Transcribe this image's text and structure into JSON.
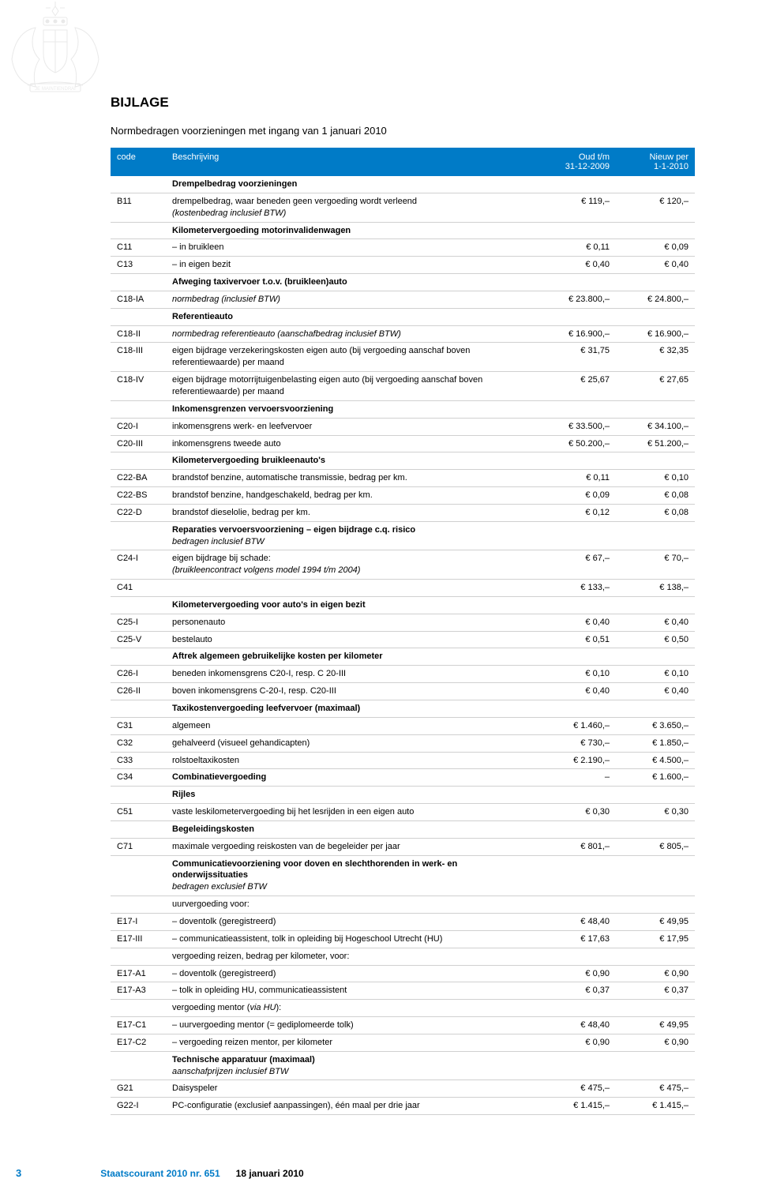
{
  "header": {
    "title": "BIJLAGE",
    "subtitle": "Normbedragen voorzieningen met ingang van 1 januari 2010"
  },
  "columns": {
    "code": "code",
    "desc": "Beschrijving",
    "old_line1": "Oud t/m",
    "old_line2": "31-12-2009",
    "new_line1": "Nieuw per",
    "new_line2": "1-1-2010"
  },
  "rows": [
    {
      "type": "section",
      "desc": "Drempelbedrag voorzieningen"
    },
    {
      "code": "B11",
      "desc": "drempelbedrag, waar beneden geen vergoeding wordt verleend",
      "desc2": "(kostenbedrag inclusief BTW)",
      "old": "€ 119,–",
      "new": "€ 120,–",
      "italic2": true
    },
    {
      "type": "section",
      "desc": "Kilometervergoeding motorinvalidenwagen"
    },
    {
      "code": "C11",
      "desc": "– in bruikleen",
      "old": "€ 0,11",
      "new": "€ 0,09"
    },
    {
      "code": "C13",
      "desc": "– in eigen bezit",
      "old": "€ 0,40",
      "new": "€ 0,40"
    },
    {
      "type": "section",
      "desc": "Afweging taxivervoer t.o.v. (bruikleen)auto"
    },
    {
      "code": "C18-IA",
      "desc": "normbedrag (inclusief BTW)",
      "italic": true,
      "old": "€ 23.800,–",
      "new": "€ 24.800,–"
    },
    {
      "type": "section",
      "desc": "Referentieauto"
    },
    {
      "code": "C18-II",
      "desc": "normbedrag referentieauto (aanschafbedrag inclusief BTW)",
      "italic": true,
      "old": "€ 16.900,–",
      "new": "€ 16.900,–"
    },
    {
      "code": "C18-III",
      "desc": "eigen bijdrage verzekeringskosten eigen auto (bij vergoeding aanschaf boven referentiewaarde) per maand",
      "old": "€ 31,75",
      "new": "€ 32,35"
    },
    {
      "code": "C18-IV",
      "desc": "eigen bijdrage motorrijtuigenbelasting eigen auto (bij vergoeding aanschaf boven referentiewaarde) per maand",
      "old": "€ 25,67",
      "new": "€ 27,65"
    },
    {
      "type": "section",
      "desc": "Inkomensgrenzen vervoersvoorziening"
    },
    {
      "code": "C20-I",
      "desc": "inkomensgrens werk- en leefvervoer",
      "old": "€ 33.500,–",
      "new": "€ 34.100,–"
    },
    {
      "code": "C20-III",
      "desc": "inkomensgrens tweede auto",
      "old": "€ 50.200,–",
      "new": "€ 51.200,–"
    },
    {
      "type": "section",
      "desc": "Kilometervergoeding bruikleenauto's"
    },
    {
      "code": "C22-BA",
      "desc": "brandstof benzine, automatische transmissie, bedrag per km.",
      "old": "€ 0,11",
      "new": "€ 0,10"
    },
    {
      "code": "C22-BS",
      "desc": "brandstof benzine, handgeschakeld, bedrag per km.",
      "old": "€ 0,09",
      "new": "€ 0,08"
    },
    {
      "code": "C22-D",
      "desc": "brandstof dieselolie, bedrag per km.",
      "old": "€ 0,12",
      "new": "€ 0,08"
    },
    {
      "type": "section",
      "desc": "Reparaties vervoersvoorziening – eigen bijdrage c.q. risico",
      "desc2": "bedragen inclusief BTW",
      "italic2": true
    },
    {
      "code": "C24-I",
      "desc": "eigen bijdrage bij schade:",
      "desc2": "(bruikleencontract volgens model 1994 t/m 2004)",
      "italic2": true,
      "old": "€ 67,–",
      "new": "€ 70,–"
    },
    {
      "code": "C41",
      "desc": "",
      "old": "€ 133,–",
      "new": "€ 138,–"
    },
    {
      "type": "section",
      "desc": "Kilometervergoeding voor auto's in eigen bezit"
    },
    {
      "code": "C25-I",
      "desc": "personenauto",
      "old": "€ 0,40",
      "new": "€ 0,40"
    },
    {
      "code": "C25-V",
      "desc": "bestelauto",
      "old": "€ 0,51",
      "new": "€ 0,50"
    },
    {
      "type": "section",
      "desc": "Aftrek algemeen gebruikelijke kosten per kilometer"
    },
    {
      "code": "C26-I",
      "desc": "beneden inkomensgrens C20-I, resp. C 20-III",
      "old": "€ 0,10",
      "new": "€ 0,10"
    },
    {
      "code": "C26-II",
      "desc": "boven inkomensgrens C-20-I, resp. C20-III",
      "old": "€ 0,40",
      "new": "€ 0,40"
    },
    {
      "type": "section",
      "desc": "Taxikostenvergoeding leefvervoer (maximaal)"
    },
    {
      "code": "C31",
      "desc": "algemeen",
      "old": "€ 1.460,–",
      "new": "€ 3.650,–"
    },
    {
      "code": "C32",
      "desc": "gehalveerd (visueel gehandicapten)",
      "old": "€ 730,–",
      "new": "€ 1.850,–"
    },
    {
      "code": "C33",
      "desc": "rolstoeltaxikosten",
      "old": "€ 2.190,–",
      "new": "€ 4.500,–"
    },
    {
      "code": "C34",
      "desc": "Combinatievergoeding",
      "bold": true,
      "old": "–",
      "new": "€ 1.600,–"
    },
    {
      "type": "section",
      "desc": "Rijles"
    },
    {
      "code": "C51",
      "desc": "vaste leskilometervergoeding bij het lesrijden in een eigen auto",
      "old": "€ 0,30",
      "new": "€ 0,30"
    },
    {
      "type": "section",
      "desc": "Begeleidingskosten"
    },
    {
      "code": "C71",
      "desc": "maximale vergoeding reiskosten van de begeleider per jaar",
      "old": "€ 801,–",
      "new": "€ 805,–"
    },
    {
      "type": "section",
      "desc": "Communicatievoorziening voor doven en slechthorenden in werk- en onderwijssituaties",
      "desc2": "bedragen exclusief BTW",
      "italic2": true
    },
    {
      "type": "plain",
      "desc": "uurvergoeding voor:"
    },
    {
      "code": "E17-I",
      "desc": "– doventolk (geregistreerd)",
      "old": "€ 48,40",
      "new": "€ 49,95"
    },
    {
      "code": "E17-III",
      "desc": "– communicatieassistent, tolk in opleiding bij Hogeschool Utrecht (HU)",
      "old": "€ 17,63",
      "new": "€ 17,95"
    },
    {
      "type": "plain",
      "desc": "vergoeding reizen, bedrag per kilometer, voor:"
    },
    {
      "code": "E17-A1",
      "desc": "– doventolk (geregistreerd)",
      "old": "€ 0,90",
      "new": "€ 0,90"
    },
    {
      "code": "E17-A3",
      "desc": "– tolk in opleiding HU, communicatieassistent",
      "old": "€ 0,37",
      "new": "€ 0,37"
    },
    {
      "type": "plain",
      "desc": "vergoeding mentor (via HU):",
      "italicpart": "via HU"
    },
    {
      "code": "E17-C1",
      "desc": "– uurvergoeding mentor (= gediplomeerde tolk)",
      "old": "€ 48,40",
      "new": "€ 49,95"
    },
    {
      "code": "E17-C2",
      "desc": "– vergoeding reizen mentor, per kilometer",
      "old": "€ 0,90",
      "new": "€ 0,90"
    },
    {
      "type": "section",
      "desc": "Technische apparatuur (maximaal)",
      "desc2": "aanschafprijzen inclusief BTW",
      "italic2": true
    },
    {
      "code": "G21",
      "desc": "Daisyspeler",
      "old": "€ 475,–",
      "new": "€ 475,–"
    },
    {
      "code": "G22-I",
      "desc": "PC-configuratie (exclusief aanpassingen), één maal per drie jaar",
      "old": "€ 1.415,–",
      "new": "€ 1.415,–"
    }
  ],
  "footer": {
    "page": "3",
    "publication": "Staatscourant 2010 nr. 651",
    "date": "18 januari 2010"
  },
  "colors": {
    "header_bg": "#007bc7",
    "border": "#d0d0d0",
    "accent": "#007bc7"
  }
}
